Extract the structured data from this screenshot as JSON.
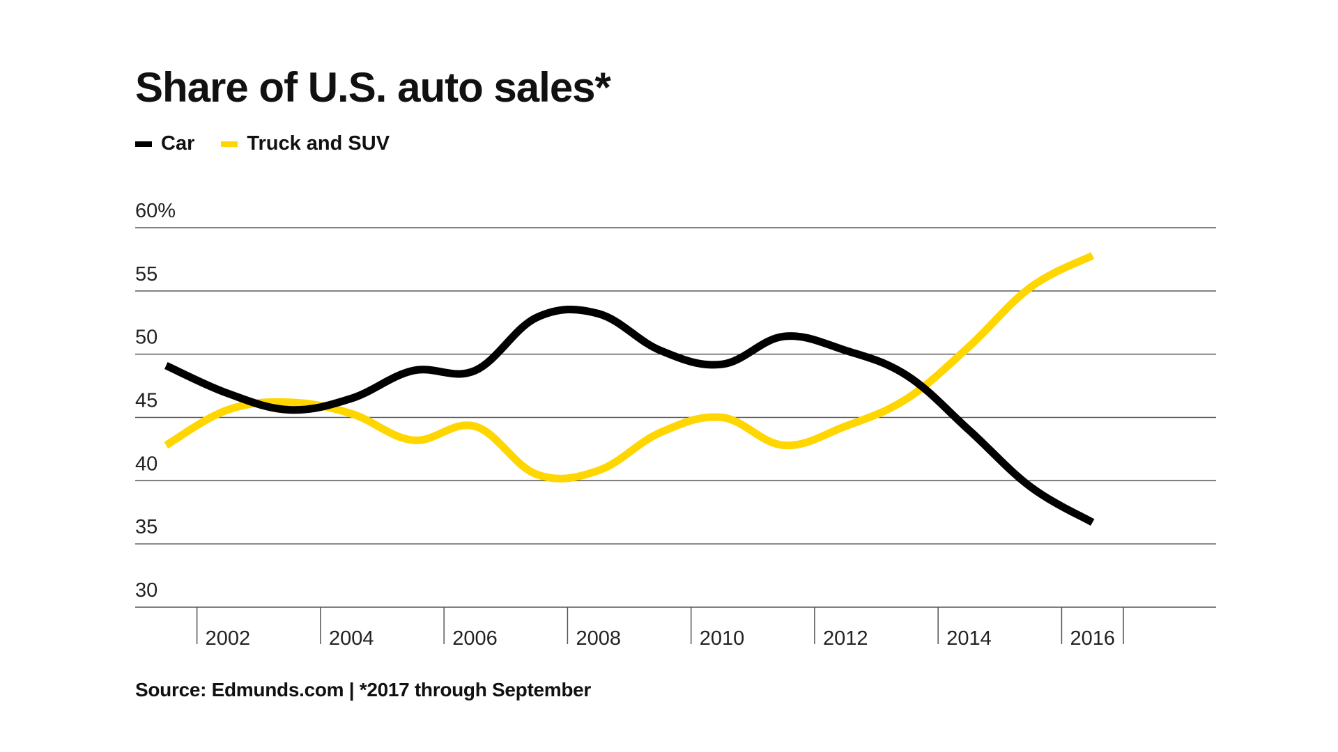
{
  "chart_data": {
    "type": "line",
    "title": "Share of U.S. auto sales*",
    "xlabel": "",
    "ylabel": "",
    "x": [
      2001,
      2002,
      2003,
      2004,
      2005,
      2006,
      2007,
      2008,
      2009,
      2010,
      2011,
      2012,
      2013,
      2014,
      2015,
      2016,
      2017
    ],
    "xlim": [
      2000.5,
      2018
    ],
    "ylim": [
      30,
      60
    ],
    "yticks": [
      {
        "value": 60,
        "label": "60%"
      },
      {
        "value": 55,
        "label": "55"
      },
      {
        "value": 50,
        "label": "50"
      },
      {
        "value": 45,
        "label": "45"
      },
      {
        "value": 40,
        "label": "40"
      },
      {
        "value": 35,
        "label": "35"
      },
      {
        "value": 30,
        "label": "30"
      }
    ],
    "xticks": [
      {
        "value": 2002,
        "label": "2002"
      },
      {
        "value": 2004,
        "label": "2004"
      },
      {
        "value": 2006,
        "label": "2006"
      },
      {
        "value": 2008,
        "label": "2008"
      },
      {
        "value": 2010,
        "label": "2010"
      },
      {
        "value": 2012,
        "label": "2012"
      },
      {
        "value": 2014,
        "label": "2014"
      },
      {
        "value": 2016,
        "label": "2016"
      }
    ],
    "grid": true,
    "legend_position": "top-left",
    "series": [
      {
        "name": "Car",
        "color": "#000000",
        "values": [
          49.1,
          46.9,
          45.6,
          46.5,
          48.7,
          48.7,
          52.9,
          53.2,
          50.3,
          49.2,
          51.4,
          50.3,
          48.3,
          44.0,
          39.5,
          36.7,
          null
        ]
      },
      {
        "name": "Truck and SUV",
        "color": "#FFD600",
        "values": [
          42.8,
          45.6,
          46.2,
          45.3,
          43.2,
          44.3,
          40.5,
          40.8,
          43.8,
          45.0,
          42.8,
          44.3,
          46.5,
          50.6,
          55.3,
          57.8,
          null
        ]
      }
    ]
  },
  "source_note": "Source: Edmunds.com | *2017 through September"
}
